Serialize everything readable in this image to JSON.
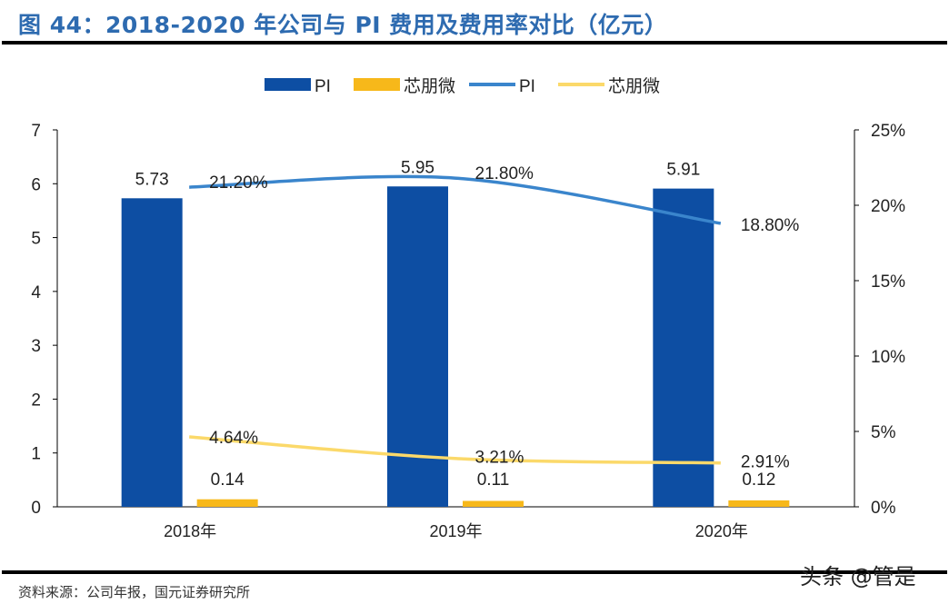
{
  "header": {
    "title": "图 44：2018-2020 年公司与 PI 费用及费用率对比（亿元）"
  },
  "footer": {
    "source": "资料来源：公司年报，国元证券研究所",
    "watermark": "头条 @管是"
  },
  "chart_data": {
    "type": "bar+line",
    "categories": [
      "2018年",
      "2019年",
      "2020年"
    ],
    "y_left": {
      "range": [
        0,
        7
      ],
      "ticks": [
        "0",
        "1",
        "2",
        "3",
        "4",
        "5",
        "6",
        "7"
      ]
    },
    "y_right": {
      "range": [
        0,
        25
      ],
      "ticks": [
        "0%",
        "5%",
        "10%",
        "15%",
        "20%",
        "25%"
      ]
    },
    "legend_position": "top",
    "series": [
      {
        "name": "PI",
        "kind": "bar",
        "axis": "left",
        "color": "#0d4ea3",
        "values": [
          5.73,
          5.95,
          5.91
        ],
        "labels": [
          "5.73",
          "5.95",
          "5.91"
        ]
      },
      {
        "name": "芯朋微",
        "kind": "bar",
        "axis": "left",
        "color": "#f7b81a",
        "values": [
          0.14,
          0.11,
          0.12
        ],
        "labels": [
          "0.14",
          "0.11",
          "0.12"
        ]
      },
      {
        "name": "PI",
        "kind": "line",
        "axis": "right",
        "color": "#3a85cc",
        "values": [
          21.2,
          21.8,
          18.8
        ],
        "labels": [
          "21.20%",
          "21.80%",
          "18.80%"
        ]
      },
      {
        "name": "芯朋微",
        "kind": "line",
        "axis": "right",
        "color": "#fbd96a",
        "values": [
          4.64,
          3.21,
          2.91
        ],
        "labels": [
          "4.64%",
          "3.21%",
          "2.91%"
        ]
      }
    ]
  }
}
